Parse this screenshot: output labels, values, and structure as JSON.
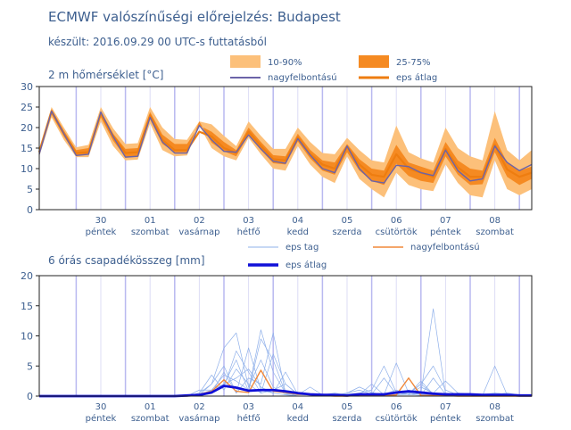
{
  "page": {
    "title": "ECMWF valószínűségi előrejelzés: Budapest",
    "subtitle": "készült: 2016.09.29 00 UTC-s futtatásból"
  },
  "colors": {
    "band_outer": "#fcc07a",
    "band_inner": "#f58a22",
    "hires_temp": "#6b63a8",
    "ens_mean_temp": "#ee7d10",
    "ens_member_precip": "#8fb0ea",
    "hires_precip": "#f0883a",
    "ens_mean_precip": "#1010d8",
    "gridline": "#b9b9f0",
    "axis_text": "#3d5f8f"
  },
  "chart_data": [
    {
      "type": "area",
      "title": "2 m hőmérséklet [°C]",
      "ylim": [
        0,
        30
      ],
      "yticks": [
        "0",
        "5",
        "10",
        "15",
        "20",
        "25",
        "30"
      ],
      "x_count": 41,
      "day_labels": [
        {
          "day": "30",
          "weekday": "péntek"
        },
        {
          "day": "01",
          "weekday": "szombat"
        },
        {
          "day": "02",
          "weekday": "vasárnap"
        },
        {
          "day": "03",
          "weekday": "hétfő"
        },
        {
          "day": "04",
          "weekday": "kedd"
        },
        {
          "day": "05",
          "weekday": "szerda"
        },
        {
          "day": "06",
          "weekday": "csütörtök"
        },
        {
          "day": "07",
          "weekday": "péntek"
        },
        {
          "day": "08",
          "weekday": "szombat"
        }
      ],
      "legend": {
        "band_outer": "10-90%",
        "band_inner": "25-75%",
        "hires": "nagyfelbontású",
        "mean": "eps átlag"
      },
      "p10": [
        13.0,
        22.5,
        17.0,
        12.8,
        12.8,
        21.5,
        15.5,
        12.0,
        12.2,
        21.0,
        14.5,
        13.0,
        13.2,
        20.5,
        15.0,
        13.0,
        12.0,
        17.5,
        13.5,
        10.0,
        9.5,
        15.5,
        11.0,
        8.0,
        6.5,
        13.0,
        7.5,
        5.0,
        3.0,
        9.0,
        6.0,
        5.0,
        4.5,
        11.0,
        6.5,
        3.5,
        3.0,
        12.0,
        5.0,
        3.5,
        5.0
      ],
      "p25": [
        13.5,
        23.2,
        17.8,
        13.3,
        13.5,
        22.5,
        16.8,
        12.8,
        13.0,
        22.0,
        16.0,
        14.0,
        14.0,
        21.5,
        16.3,
        14.2,
        13.0,
        18.3,
        14.5,
        11.3,
        11.0,
        16.6,
        12.5,
        9.5,
        8.5,
        14.0,
        9.5,
        7.0,
        6.0,
        11.2,
        8.2,
        7.0,
        6.5,
        13.0,
        8.5,
        6.0,
        6.2,
        14.0,
        8.0,
        6.0,
        7.5
      ],
      "p75": [
        14.5,
        24.5,
        19.3,
        14.5,
        15.0,
        24.0,
        18.5,
        14.8,
        15.0,
        23.8,
        18.3,
        16.0,
        16.0,
        20.5,
        19.0,
        16.5,
        14.5,
        20.0,
        16.5,
        13.3,
        13.0,
        18.5,
        14.6,
        12.0,
        11.5,
        16.0,
        12.3,
        10.0,
        9.5,
        15.8,
        11.5,
        10.5,
        9.5,
        16.5,
        12.0,
        10.0,
        9.5,
        17.5,
        11.5,
        9.5,
        10.5
      ],
      "p90": [
        15.0,
        25.0,
        20.0,
        15.2,
        15.8,
        25.0,
        19.8,
        16.0,
        16.2,
        25.0,
        20.0,
        17.2,
        17.0,
        21.5,
        20.8,
        18.0,
        15.5,
        21.5,
        18.0,
        14.8,
        14.8,
        20.0,
        16.5,
        13.8,
        13.5,
        17.5,
        14.5,
        12.0,
        11.5,
        20.5,
        14.0,
        12.5,
        11.5,
        20.0,
        15.0,
        13.0,
        12.0,
        24.0,
        14.5,
        12.0,
        14.5
      ],
      "hires": [
        13.5,
        24.0,
        18.5,
        13.2,
        13.5,
        23.8,
        17.8,
        12.8,
        13.0,
        22.5,
        16.5,
        13.8,
        13.8,
        20.5,
        17.0,
        14.2,
        14.0,
        18.2,
        14.8,
        11.8,
        11.3,
        17.3,
        13.3,
        10.0,
        9.0,
        15.5,
        10.0,
        7.0,
        6.5,
        10.8,
        10.5,
        9.0,
        8.3,
        14.5,
        9.5,
        7.0,
        7.5,
        15.5,
        11.5,
        9.5,
        11.0
      ],
      "mean": [
        14.0,
        24.0,
        18.5,
        13.8,
        14.0,
        23.5,
        18.0,
        13.8,
        14.0,
        23.0,
        17.0,
        14.5,
        14.5,
        19.0,
        17.8,
        15.0,
        13.8,
        19.0,
        15.5,
        12.3,
        12.0,
        17.6,
        13.5,
        11.0,
        10.0,
        15.3,
        11.0,
        8.5,
        8.0,
        13.5,
        10.0,
        9.0,
        8.0,
        14.8,
        10.3,
        8.0,
        8.0,
        15.8,
        9.8,
        8.0,
        9.0
      ]
    },
    {
      "type": "line",
      "title": "6 órás csapadékösszeg [mm]",
      "ylim": [
        0,
        20
      ],
      "yticks": [
        "0",
        "5",
        "10",
        "15",
        "20"
      ],
      "x_count": 41,
      "legend": {
        "members": "eps tag",
        "hires": "nagyfelbontású",
        "mean": "eps átlag"
      },
      "members": [
        [
          0,
          0,
          0,
          0,
          0,
          0,
          0,
          0,
          0,
          0,
          0,
          0,
          0,
          0.5,
          2.0,
          5.0,
          0.5,
          8.0,
          1.0,
          0.5,
          0.2,
          0,
          0,
          0,
          0,
          0.5,
          1.0,
          0.3,
          0,
          0.5,
          0.5,
          2.0,
          0.3,
          0.2,
          0,
          0,
          0,
          0.5,
          0.3,
          0,
          0
        ],
        [
          0,
          0,
          0,
          0,
          0,
          0,
          0,
          0,
          0,
          0,
          0,
          0,
          0,
          0.2,
          1.0,
          3.5,
          2.5,
          1.0,
          11.0,
          4.0,
          0.5,
          0,
          0,
          0,
          0,
          0.2,
          0.3,
          0.2,
          0.3,
          1.0,
          0.2,
          0.5,
          14.5,
          0.3,
          0.1,
          0,
          0.3,
          0.5,
          0.3,
          0.2,
          0
        ],
        [
          0,
          0,
          0,
          0,
          0,
          0,
          0,
          0,
          0,
          0,
          0,
          0,
          0,
          0.5,
          3.5,
          1.0,
          4.5,
          2.0,
          0.5,
          7.0,
          2.0,
          0.3,
          0.3,
          0.2,
          0.1,
          0.3,
          0.5,
          1.0,
          5.0,
          0.6,
          0.3,
          1.5,
          0.5,
          2.5,
          0.5,
          0.3,
          0.2,
          0.2,
          0.1,
          0.1,
          0
        ],
        [
          0,
          0,
          0,
          0,
          0,
          0,
          0,
          0,
          0,
          0,
          0,
          0,
          0,
          0.2,
          2.0,
          8.0,
          10.5,
          1.5,
          6.0,
          1.5,
          0.3,
          0.3,
          0.2,
          0.1,
          0.2,
          0.5,
          1.5,
          0.6,
          0.2,
          0.3,
          1.0,
          0.2,
          0.3,
          0.5,
          0.2,
          0.2,
          0.2,
          0.3,
          0.5,
          0.2,
          0.1
        ],
        [
          0,
          0,
          0,
          0,
          0,
          0,
          0,
          0,
          0,
          0,
          0,
          0,
          0,
          1.0,
          1.0,
          2.0,
          6.0,
          0.8,
          9.5,
          6.0,
          0.5,
          0.2,
          0.2,
          0.3,
          0.2,
          0.1,
          0.2,
          2.0,
          0.2,
          0.2,
          0.3,
          2.0,
          5.0,
          1.0,
          0.2,
          0.1,
          0,
          0,
          0,
          0,
          0
        ],
        [
          0,
          0,
          0,
          0,
          0,
          0,
          0,
          0,
          0,
          0,
          0,
          0,
          0,
          0,
          0.5,
          4.0,
          0.5,
          3.0,
          2.0,
          10.5,
          0.5,
          0.2,
          1.5,
          0.2,
          0.2,
          0.1,
          0.2,
          0.3,
          3.0,
          0.3,
          0.3,
          0.1,
          3.0,
          0.3,
          0.2,
          0.1,
          0.1,
          5.0,
          0.2,
          0.1,
          0.2
        ],
        [
          0,
          0,
          0,
          0,
          0,
          0,
          0,
          0,
          0,
          0,
          0,
          0,
          0.2,
          0.3,
          0.5,
          1.5,
          7.5,
          4.0,
          0.5,
          1.0,
          2.0,
          0.3,
          0.2,
          0.2,
          0.1,
          0.1,
          0.3,
          0.5,
          0.2,
          0.6,
          0.3,
          2.5,
          0.3,
          0.2,
          0.1,
          0.1,
          0.2,
          0.1,
          0.1,
          0.1,
          0
        ],
        [
          0,
          0,
          0,
          0,
          0,
          0,
          0,
          0,
          0,
          0,
          0,
          0,
          0,
          0.2,
          0.5,
          2.0,
          3.0,
          4.5,
          1.5,
          0.5,
          4.0,
          0.3,
          0.2,
          0.2,
          0.5,
          0.2,
          0.3,
          0.2,
          0.2,
          5.5,
          0.5,
          0.3,
          0.2,
          0.3,
          0.5,
          0.3,
          0.2,
          0.1,
          0.2,
          0.2,
          0.1
        ]
      ],
      "hires": [
        0,
        0,
        0,
        0,
        0,
        0,
        0,
        0,
        0,
        0,
        0,
        0,
        0,
        0.3,
        0.8,
        2.7,
        0.8,
        0.6,
        4.3,
        0.8,
        0.6,
        0.3,
        0.3,
        0.1,
        0,
        0,
        0.1,
        0.1,
        0.1,
        0.2,
        3.0,
        0.1,
        0.1,
        0.1,
        0,
        0,
        0,
        0,
        0,
        0,
        0
      ],
      "mean": [
        0,
        0,
        0,
        0,
        0,
        0,
        0,
        0,
        0,
        0,
        0,
        0,
        0.1,
        0.2,
        0.6,
        1.7,
        1.4,
        0.9,
        1.0,
        1.0,
        0.8,
        0.5,
        0.3,
        0.2,
        0.2,
        0.1,
        0.3,
        0.3,
        0.3,
        0.6,
        0.8,
        0.6,
        0.4,
        0.3,
        0.3,
        0.3,
        0.2,
        0.2,
        0.2,
        0.1,
        0.1
      ]
    }
  ]
}
